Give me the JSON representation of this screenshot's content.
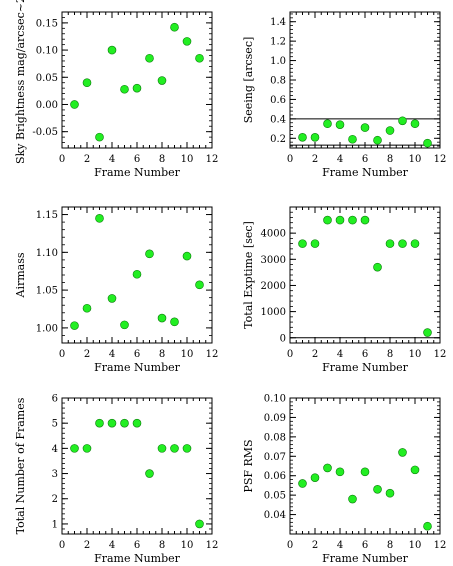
{
  "figure": {
    "point_color": "#22ee22",
    "point_stroke": "#0a7a0a",
    "line_color": "#000000"
  },
  "chart_data": [
    {
      "type": "scatter",
      "xlabel": "Frame Number",
      "ylabel": "Sky Brightness mag/arcsec~2",
      "xlim": [
        0,
        12
      ],
      "ylim": [
        -0.08,
        0.17
      ],
      "xticks": [
        0,
        2,
        4,
        6,
        8,
        10,
        12
      ],
      "yticks": [
        -0.05,
        0.0,
        0.05,
        0.1,
        0.15
      ],
      "ytick_labels": [
        "-0.05",
        "0.00",
        "0.05",
        "0.10",
        "0.15"
      ],
      "x": [
        1,
        2,
        3,
        4,
        5,
        6,
        7,
        8,
        9,
        10,
        11
      ],
      "y": [
        0.0,
        0.04,
        -0.06,
        0.1,
        0.028,
        0.03,
        0.085,
        0.044,
        0.142,
        0.116,
        0.085
      ],
      "hlines": []
    },
    {
      "type": "scatter",
      "xlabel": "Frame Number",
      "ylabel": "Seeing [arcsec]",
      "xlim": [
        0,
        12
      ],
      "ylim": [
        0.1,
        1.5
      ],
      "xticks": [
        0,
        2,
        4,
        6,
        8,
        10,
        12
      ],
      "yticks": [
        0.2,
        0.4,
        0.6,
        0.8,
        1.0,
        1.2,
        1.4
      ],
      "ytick_labels": [
        "0.2",
        "0.4",
        "0.6",
        "0.8",
        "1.0",
        "1.2",
        "1.4"
      ],
      "x": [
        1,
        2,
        3,
        4,
        5,
        6,
        7,
        8,
        9,
        10,
        11
      ],
      "y": [
        0.21,
        0.21,
        0.35,
        0.34,
        0.19,
        0.31,
        0.18,
        0.28,
        0.38,
        0.35,
        0.15
      ],
      "hlines": [
        0.4,
        0.13
      ]
    },
    {
      "type": "scatter",
      "xlabel": "Frame Number",
      "ylabel": "Airmass",
      "xlim": [
        0,
        12
      ],
      "ylim": [
        0.98,
        1.16
      ],
      "xticks": [
        0,
        2,
        4,
        6,
        8,
        10,
        12
      ],
      "yticks": [
        1.0,
        1.05,
        1.1,
        1.15
      ],
      "ytick_labels": [
        "1.00",
        "1.05",
        "1.10",
        "1.15"
      ],
      "x": [
        1,
        2,
        3,
        4,
        5,
        6,
        7,
        8,
        9,
        10,
        11
      ],
      "y": [
        1.003,
        1.026,
        1.145,
        1.039,
        1.004,
        1.071,
        1.098,
        1.013,
        1.008,
        1.095,
        1.057
      ],
      "hlines": []
    },
    {
      "type": "scatter",
      "xlabel": "Frame Number",
      "ylabel": "Total Exptime [sec]",
      "xlim": [
        0,
        12
      ],
      "ylim": [
        -200,
        5000
      ],
      "xticks": [
        0,
        2,
        4,
        6,
        8,
        10,
        12
      ],
      "yticks": [
        0,
        1000,
        2000,
        3000,
        4000
      ],
      "ytick_labels": [
        "0",
        "1000",
        "2000",
        "3000",
        "4000"
      ],
      "x": [
        1,
        2,
        3,
        4,
        5,
        6,
        7,
        8,
        9,
        10,
        11
      ],
      "y": [
        3600,
        3600,
        4500,
        4500,
        4500,
        4500,
        2700,
        3600,
        3600,
        3600,
        200
      ],
      "hlines": [
        0
      ]
    },
    {
      "type": "scatter",
      "xlabel": "Frame Number",
      "ylabel": "Total Number of Frames",
      "xlim": [
        0,
        12
      ],
      "ylim": [
        0.6,
        6.0
      ],
      "xticks": [
        0,
        2,
        4,
        6,
        8,
        10,
        12
      ],
      "yticks": [
        1,
        2,
        3,
        4,
        5,
        6
      ],
      "ytick_labels": [
        "1",
        "2",
        "3",
        "4",
        "5",
        "6"
      ],
      "x": [
        1,
        2,
        3,
        4,
        5,
        6,
        7,
        8,
        9,
        10,
        11
      ],
      "y": [
        4,
        4,
        5,
        5,
        5,
        5,
        3,
        4,
        4,
        4,
        1
      ],
      "hlines": []
    },
    {
      "type": "scatter",
      "xlabel": "Frame Number",
      "ylabel": "PSF RMS",
      "xlim": [
        0,
        12
      ],
      "ylim": [
        0.03,
        0.1
      ],
      "xticks": [
        0,
        2,
        4,
        6,
        8,
        10,
        12
      ],
      "yticks": [
        0.04,
        0.05,
        0.06,
        0.07,
        0.08,
        0.09,
        0.1
      ],
      "ytick_labels": [
        "0.04",
        "0.05",
        "0.06",
        "0.07",
        "0.08",
        "0.09",
        "0.10"
      ],
      "x": [
        1,
        2,
        3,
        4,
        5,
        6,
        7,
        8,
        9,
        10,
        11
      ],
      "y": [
        0.056,
        0.059,
        0.064,
        0.062,
        0.048,
        0.062,
        0.053,
        0.051,
        0.072,
        0.063,
        0.034
      ],
      "hlines": []
    }
  ]
}
